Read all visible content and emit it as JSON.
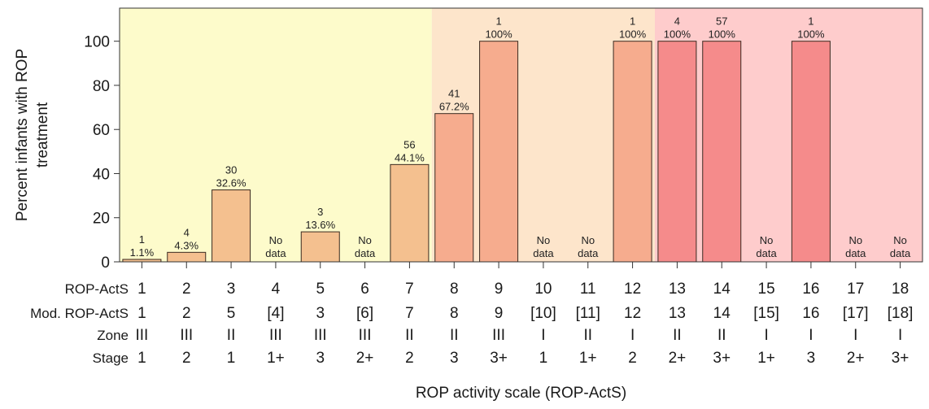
{
  "chart_data": {
    "type": "bar",
    "ylabel": "Percent infants with ROP treatment",
    "xlabel": "ROP activity scale (ROP-ActS)",
    "ylim": [
      0,
      115
    ],
    "yticks": [
      0,
      20,
      40,
      60,
      80,
      100
    ],
    "grid": false,
    "categories": [
      "1",
      "2",
      "3",
      "4",
      "5",
      "6",
      "7",
      "8",
      "9",
      "10",
      "11",
      "12",
      "13",
      "14",
      "15",
      "16",
      "17",
      "18"
    ],
    "values": [
      1.1,
      4.3,
      32.6,
      null,
      13.6,
      null,
      44.1,
      67.2,
      100,
      null,
      null,
      100,
      100,
      100,
      null,
      100,
      null,
      null
    ],
    "counts": [
      "1",
      "4",
      "30",
      "",
      "3",
      "",
      "56",
      "41",
      "1",
      "",
      "",
      "1",
      "4",
      "57",
      "",
      "1",
      "",
      ""
    ],
    "percent_labels": [
      "1.1%",
      "4.3%",
      "32.6%",
      "",
      "13.6%",
      "",
      "44.1%",
      "67.2%",
      "100%",
      "",
      "",
      "100%",
      "100%",
      "100%",
      "",
      "100%",
      "",
      ""
    ],
    "no_data_label": [
      "No",
      "data"
    ],
    "bar_colors": [
      "#f4c08f",
      "#f4c08f",
      "#f4c08f",
      "",
      "#f4c08f",
      "",
      "#f4c08f",
      "#f6ac8e",
      "#f6ac8e",
      "",
      "",
      "#f6ac8e",
      "#f58b8b",
      "#f58b8b",
      "",
      "#f58b8b",
      "",
      ""
    ],
    "bands": [
      {
        "from": 1,
        "to": 7,
        "color": "#fdfbcb"
      },
      {
        "from": 8,
        "to": 12,
        "color": "#fde5cb"
      },
      {
        "from": 13,
        "to": 18,
        "color": "#fecccc"
      }
    ],
    "rows": [
      {
        "name": "ROP-ActS",
        "values": [
          "1",
          "2",
          "3",
          "4",
          "5",
          "6",
          "7",
          "8",
          "9",
          "10",
          "11",
          "12",
          "13",
          "14",
          "15",
          "16",
          "17",
          "18"
        ]
      },
      {
        "name": "Mod. ROP-ActS",
        "values": [
          "1",
          "2",
          "5",
          "[4]",
          "3",
          "[6]",
          "7",
          "8",
          "9",
          "[10]",
          "[11]",
          "12",
          "13",
          "14",
          "[15]",
          "16",
          "[17]",
          "[18]"
        ]
      },
      {
        "name": "Zone",
        "values": [
          "III",
          "III",
          "II",
          "III",
          "III",
          "III",
          "II",
          "II",
          "III",
          "I",
          "II",
          "I",
          "II",
          "II",
          "I",
          "I",
          "I",
          "I"
        ]
      },
      {
        "name": "Stage",
        "values": [
          "1",
          "2",
          "1",
          "1+",
          "3",
          "2+",
          "2",
          "3",
          "3+",
          "1",
          "1+",
          "2",
          "2+",
          "3+",
          "1+",
          "3",
          "2+",
          "3+"
        ]
      }
    ]
  }
}
